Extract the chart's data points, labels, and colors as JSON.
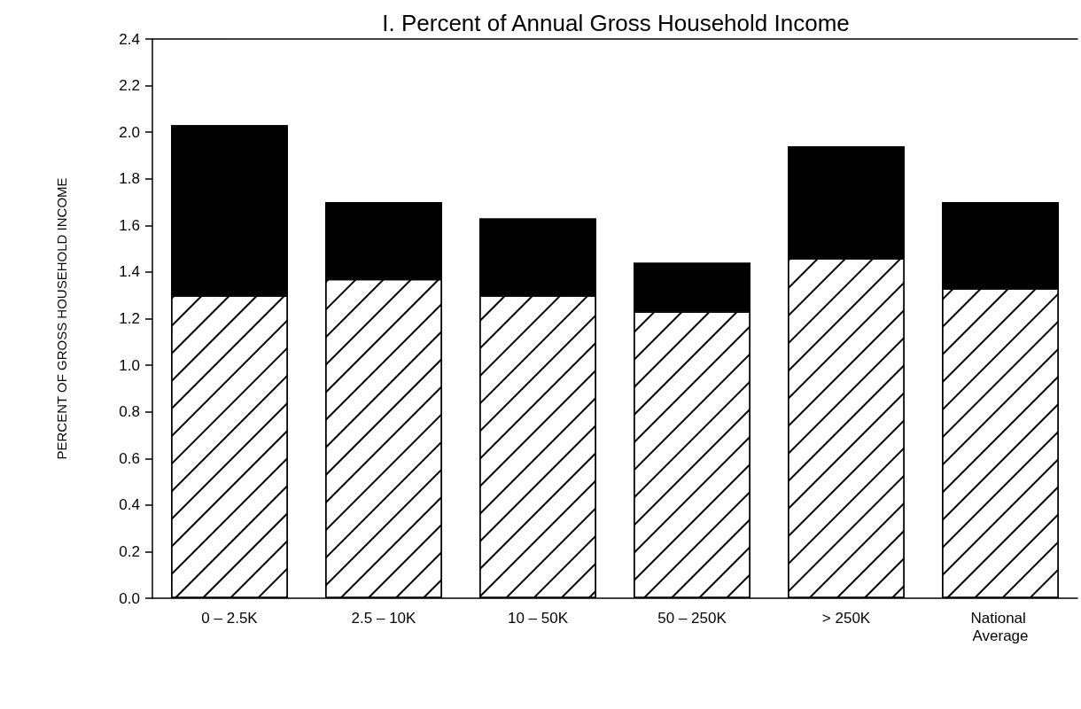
{
  "chart_data": {
    "type": "bar",
    "title": "I. Percent of Annual Gross Household Income",
    "ylabel": "PERCENT OF GROSS HOUSEHOLD INCOME",
    "categories": [
      "0 – 2.5K",
      "2.5 – 10K",
      "10 – 50K",
      "50 – 250K",
      "> 250K",
      "National Average"
    ],
    "stacked": true,
    "series": [
      {
        "color": "#ffffff",
        "values": [
          1.3,
          1.37,
          1.3,
          1.23,
          1.46,
          1.33
        ]
      },
      {
        "color": "#000000",
        "values": [
          0.73,
          0.33,
          0.33,
          0.21,
          0.48,
          0.37
        ]
      }
    ],
    "ylim": [
      0,
      2.4
    ],
    "yticks": [
      {
        "value": 0,
        "label": "0.0"
      },
      0.2,
      0.4,
      0.6,
      0.8,
      {
        "value": 1,
        "label": "1.0"
      },
      1.2,
      1.4,
      1.6,
      1.8,
      {
        "value": 2,
        "label": "2.0"
      },
      2.2,
      2.4
    ],
    "grid": false
  }
}
